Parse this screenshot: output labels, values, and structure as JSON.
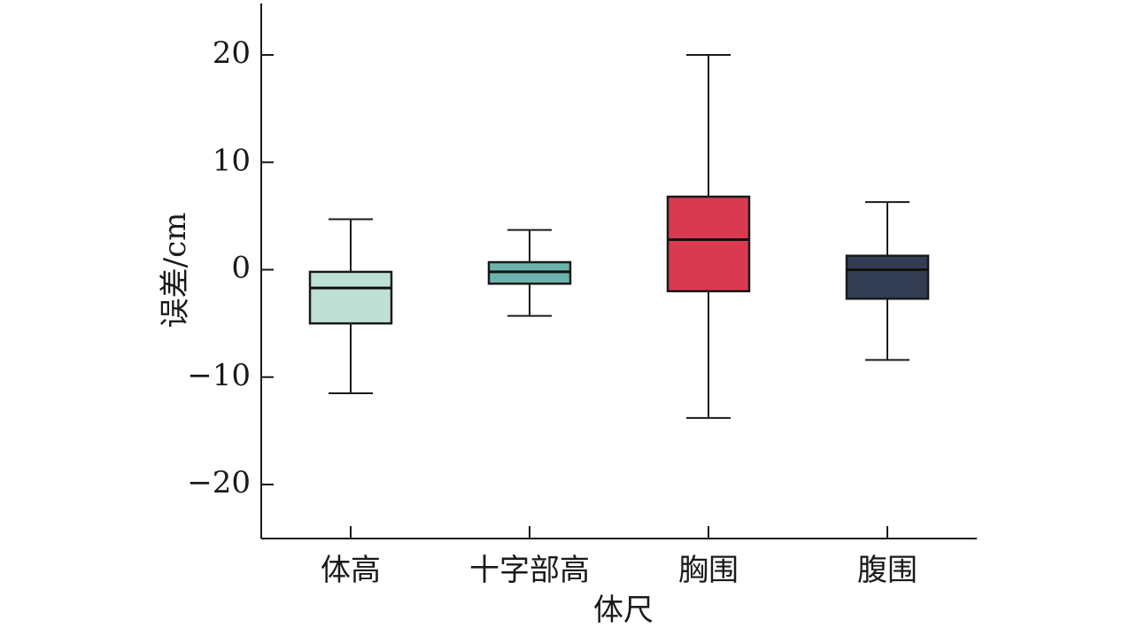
{
  "chart_data": {
    "type": "box",
    "xlabel": "体尺",
    "ylabel": "误差/cm",
    "ylim": [
      -25,
      25
    ],
    "yticks": [
      20,
      10,
      0,
      -10,
      -20
    ],
    "ytick_labels": [
      "20",
      "10",
      "0",
      "−10",
      "−20"
    ],
    "categories": [
      "体高",
      "十字部高",
      "胸围",
      "腹围"
    ],
    "colors": [
      "#bfe0d5",
      "#6db3ad",
      "#d93a51",
      "#323c52"
    ],
    "boxes": [
      {
        "category": "体高",
        "whisker_low": -11.5,
        "q1": -5.0,
        "median": -1.7,
        "q3": -0.2,
        "whisker_high": 4.7
      },
      {
        "category": "十字部高",
        "whisker_low": -4.3,
        "q1": -1.3,
        "median": -0.2,
        "q3": 0.7,
        "whisker_high": 3.7
      },
      {
        "category": "胸围",
        "whisker_low": -13.8,
        "q1": -2.0,
        "median": 2.8,
        "q3": 6.8,
        "whisker_high": 20.0
      },
      {
        "category": "腹围",
        "whisker_low": -8.4,
        "q1": -2.7,
        "median": 0.0,
        "q3": 1.3,
        "whisker_high": 6.3
      }
    ],
    "grid": false,
    "legend": "none"
  }
}
